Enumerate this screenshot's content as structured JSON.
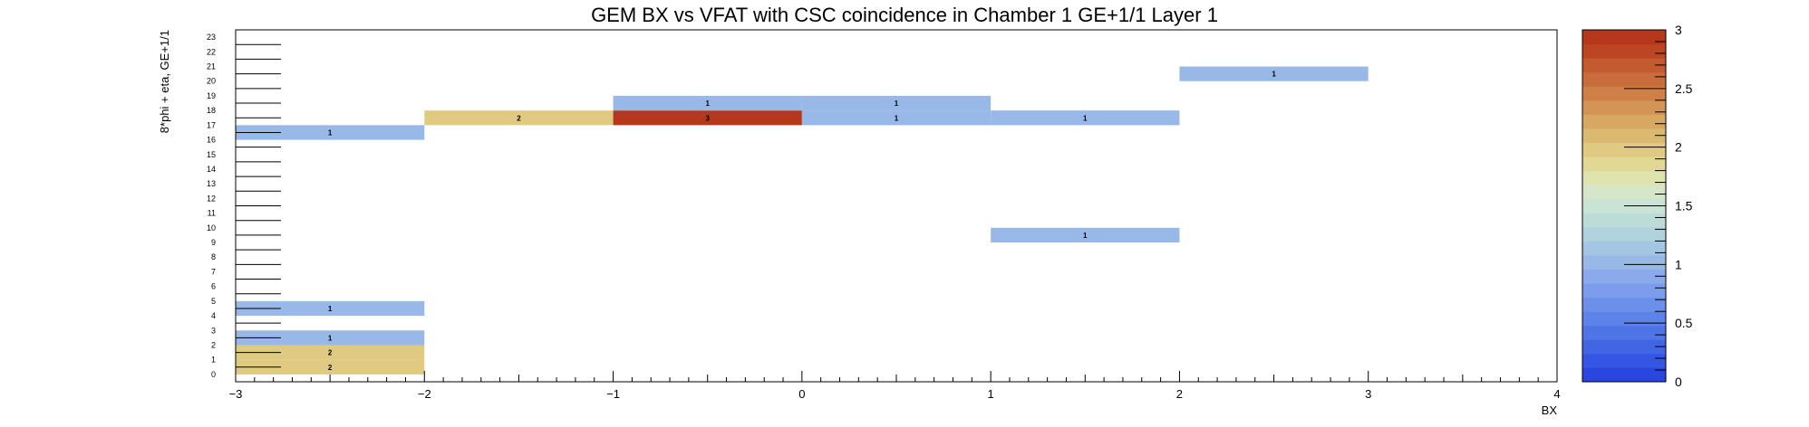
{
  "chart_data": {
    "type": "heatmap",
    "title": "GEM BX vs VFAT with CSC coincidence in Chamber 1 GE+1/1 Layer 1",
    "xlabel": "BX",
    "ylabel": "8*phi + eta, GE+1/1",
    "xlim": [
      -3,
      4
    ],
    "ylim": [
      0,
      24
    ],
    "zlim": [
      0,
      3
    ],
    "x_bins": 7,
    "y_bins": 24,
    "x_ticks": [
      -3,
      -2,
      -1,
      0,
      1,
      2,
      3,
      4
    ],
    "x_tick_labels": [
      "−3",
      "−2",
      "−1",
      "0",
      "1",
      "2",
      "3",
      "4"
    ],
    "y_tick_labels": [
      "0",
      "1",
      "2",
      "3",
      "4",
      "5",
      "6",
      "7",
      "8",
      "9",
      "10",
      "11",
      "12",
      "13",
      "14",
      "15",
      "16",
      "17",
      "18",
      "19",
      "20",
      "21",
      "22",
      "23"
    ],
    "z_ticks": [
      0,
      0.5,
      1,
      1.5,
      2,
      2.5,
      3
    ],
    "z_tick_labels": [
      "0",
      "0.5",
      "1",
      "1.5",
      "2",
      "2.5",
      "3"
    ],
    "cells": [
      {
        "x": -2.5,
        "y": 1,
        "value": 2
      },
      {
        "x": -2.5,
        "y": 2,
        "value": 2
      },
      {
        "x": -2.5,
        "y": 3,
        "value": 1
      },
      {
        "x": -2.5,
        "y": 5,
        "value": 1
      },
      {
        "x": -2.5,
        "y": 17,
        "value": 1
      },
      {
        "x": -1.5,
        "y": 18,
        "value": 2
      },
      {
        "x": -0.5,
        "y": 18,
        "value": 3
      },
      {
        "x": -0.5,
        "y": 19,
        "value": 1
      },
      {
        "x": 0.5,
        "y": 18,
        "value": 1
      },
      {
        "x": 0.5,
        "y": 19,
        "value": 1
      },
      {
        "x": 1.5,
        "y": 10,
        "value": 1
      },
      {
        "x": 1.5,
        "y": 18,
        "value": 1
      },
      {
        "x": 2.5,
        "y": 21,
        "value": 1
      }
    ],
    "palette": [
      "#2a46e0",
      "#3556e2",
      "#4265e4",
      "#4f74e6",
      "#5d82e8",
      "#6c90ea",
      "#7b9deb",
      "#8aaaec",
      "#98b8e8",
      "#a5c6e2",
      "#b0d2dc",
      "#bcdcd8",
      "#c9e3d4",
      "#d6e6c8",
      "#dfe4ae",
      "#e2d896",
      "#e0ca82",
      "#dcb970",
      "#d8a762",
      "#d49455",
      "#cf8048",
      "#c96c3c",
      "#c35a30",
      "#bc4624",
      "#b5371c"
    ],
    "legend": "colorbar-right",
    "grid": false
  }
}
